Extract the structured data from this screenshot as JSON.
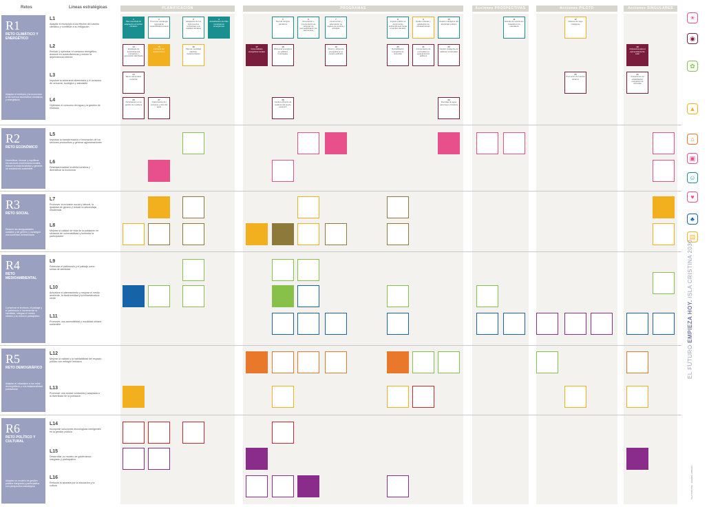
{
  "headers": {
    "retos": "Retos",
    "lineas": "Líneas estratégicas",
    "cols": [
      "PLANIFICACIÓN",
      "PROGRAMAS",
      "Acciones PROSPECTIVAS",
      "Acciones PILOTO",
      "Acciones SINGULARES"
    ]
  },
  "side": {
    "title_a": "EL FUTURO ",
    "title_b": "EMPIEZA HOY.",
    "title_c": " ISLA CRISTINA 2030",
    "footer": "ISLA CRISTINA · AGENDA URBANA"
  },
  "bands": [
    {
      "reto": "R1",
      "name": "RETO CLIMÁTICO Y ENERGÉTICO",
      "desc": "Adaptar el territorio y la economía a los nuevos escenarios climáticos y energéticos",
      "lines": [
        {
          "code": "L1",
          "text": "Adaptar el municipio a los efectos del cambio climático y contribuir a su mitigación"
        },
        {
          "code": "L2",
          "text": "Reducir y optimizar el consumo energético, avanzar en autosuficiencia y reducir la dependencia exterior"
        },
        {
          "code": "L3",
          "text": "Impulsar la soberanía alimentaria y el consumo de cercanía, ecológico y saludable"
        },
        {
          "code": "L4",
          "text": "Optimizar el consumo del agua y la gestión de residuos"
        }
      ]
    },
    {
      "reto": "R2",
      "name": "RETO ECONÓMICO",
      "desc": "Diversificar, innovar y equilibrar los sectores económicos locales, reducir la estacionalidad y generar un crecimiento sostenible",
      "lines": [
        {
          "code": "L5",
          "text": "Impulsar la transformación e innovación de los sectores productivos y generar aglomeraciones"
        },
        {
          "code": "L6",
          "text": "Desestacionalizar la oferta turística y diversificar la economía"
        }
      ]
    },
    {
      "reto": "R3",
      "name": "RETO SOCIAL",
      "desc": "Reducir las desigualdades sociales y de género y conseguir una sociedad cohesionada",
      "lines": [
        {
          "code": "L7",
          "text": "Promover la inclusión social y laboral, la igualdad de género y reducir la desventaja residencial"
        },
        {
          "code": "L8",
          "text": "Mejorar la calidad de vida de la población en situación de vulnerabilidad y fomentar la participación"
        }
      ]
    },
    {
      "reto": "R4",
      "name": "RETO MEDIOAMBIENTAL",
      "desc": "Conservar el territorio, el paisaje y el patrimonio e incrementar la identidad, integrar el núcleo urbano y su entorno paisajístico",
      "lines": [
        {
          "code": "L9",
          "text": "Potenciar el patrimonio y el paisaje como señas de identidad"
        },
        {
          "code": "L10",
          "text": "Actualizar el planeamiento y mejorar el medio ambiente, la biodiversidad y la infraestructura verde"
        },
        {
          "code": "L11",
          "text": "Promover una accesibilidad y movilidad urbana sostenible"
        }
      ]
    },
    {
      "reto": "R5",
      "name": "RETO DEMOGRÁFICO",
      "desc": "Adaptar el urbanismo a los retos demográficos y a la estacionalidad poblacional",
      "lines": [
        {
          "code": "L12",
          "text": "Mejorar la calidad y la habitabilidad del espacio público con enfoque inclusivo"
        },
        {
          "code": "L13",
          "text": "Promover una ciudad cuidadora y adaptada a la diversidad de la población"
        }
      ]
    },
    {
      "reto": "R6",
      "name": "RETO POLÍTICO Y CULTURAL",
      "desc": "Adoptar un modelo de gestión pública integrada y participativa con perspectiva estratégica",
      "lines": [
        {
          "code": "L14",
          "text": "Incorporar soluciones tecnológicas inteligentes en la gestión pública"
        },
        {
          "code": "L15",
          "text": "Desarrollar un modelo de gobernanza integrado y participativo"
        },
        {
          "code": "L16",
          "text": "Reforzar la apuesta por la educación y la cultura"
        }
      ]
    }
  ],
  "actions": [
    {
      "n": "1",
      "t": "Plan municipal de adaptación al cambio climático",
      "c": "c-teal-f"
    },
    {
      "n": "2",
      "t": "Promover estrategia regional de sostenibilidad costera",
      "c": "c-teal"
    },
    {
      "n": "3",
      "t": "Adaptación de los instrumentos territoriales a la realidad climática",
      "c": "c-teal"
    },
    {
      "n": "4",
      "t": "Actualización del Plan municipal de emergencias",
      "c": "c-teal-f"
    },
    {
      "n": "5",
      "t": "Red de refugios climáticos",
      "c": "c-teal"
    },
    {
      "n": "6",
      "t": "Renovación e incorporación de sistemas de permeabilización de pavimentos",
      "c": "c-teal"
    },
    {
      "n": "7",
      "t": "Construcción y adecuación de lugares de sombra y arbolado",
      "c": "c-teal"
    },
    {
      "n": "8",
      "t": "Impulso público al compromiso ambiental para frenar el cambio climático",
      "c": "c-teal"
    },
    {
      "n": "9",
      "t": "Redes urbanas y adaptación de infraestructuras",
      "c": "c-yel"
    },
    {
      "n": "10",
      "t": "Gestión inteligente del alumbrado público",
      "c": "c-teal"
    },
    {
      "n": "11",
      "t": "Estudio de soluciones basadas en la naturaleza",
      "c": "c-teal"
    },
    {
      "n": "12",
      "t": "Sistema de riego inteligente",
      "c": "c-yel"
    },
    {
      "n": "13",
      "t": "Ordenanza para el aprovechamiento solar",
      "c": "c-mar-f"
    },
    {
      "n": "14",
      "t": "Estrategia de autosuficiencia energética y generación distribuida",
      "c": "c-mar"
    },
    {
      "n": "15",
      "t": "Fomento del autoconsumo",
      "c": "c-yel-f"
    },
    {
      "n": "16",
      "t": "Plan de movilidad eléctrica: implementación",
      "c": "c-yel"
    },
    {
      "n": "17",
      "t": "Comunidades energéticas locales",
      "c": "c-mar-f"
    },
    {
      "n": "18",
      "t": "Eficiencia energética en edificios municipales",
      "c": "c-mar"
    },
    {
      "n": "19",
      "t": "Ahorro y eficiencia energética en el parque edificado",
      "c": "c-mar"
    },
    {
      "n": "20",
      "t": "Rehabilitación energética de viviendas",
      "c": "c-mar"
    },
    {
      "n": "21",
      "t": "Incorporación de renovables en equipamientos públicos",
      "c": "c-mar"
    },
    {
      "n": "22",
      "t": "Gestión inteligente de edificios municipales",
      "c": "c-mar"
    },
    {
      "n": "23",
      "t": "Actuaciones de rehabilitación energética de viviendas",
      "c": "c-mar"
    },
    {
      "n": "24",
      "t": "Banco alimentario territorial",
      "c": "c-mar"
    },
    {
      "n": "25",
      "t": "Promoción de huertos urbanos",
      "c": "c-mar"
    },
    {
      "n": "26",
      "t": "Participación en la gestión de residuos",
      "c": "c-mar"
    },
    {
      "n": "27",
      "t": "Optimización del consumo y ciclo del agua",
      "c": "c-mar"
    },
    {
      "n": "28",
      "t": "Gestión eficiente de residuos del puerto pesquero",
      "c": "c-mar"
    },
    {
      "n": "29",
      "t": "Reciclaje de agua para riego y limpieza",
      "c": "c-mar"
    }
  ],
  "icons": [
    "sun-icon",
    "drop-icon",
    "plant-icon",
    "factory-icon",
    "house-icon",
    "cart-icon",
    "people-icon",
    "heart-icon",
    "tree-icon",
    "road-icon",
    "building-icon",
    "book-icon"
  ]
}
